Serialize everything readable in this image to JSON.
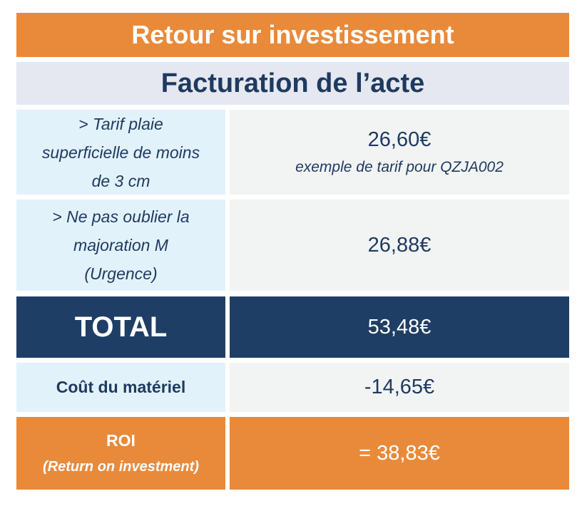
{
  "header": {
    "title": "Retour sur investissement",
    "subtitle": "Facturation de l’acte"
  },
  "table": {
    "rows": [
      {
        "label_lines": [
          "> Tarif plaie",
          "superficielle de moins",
          "de 3 cm"
        ],
        "value": "26,60€",
        "note": "exemple de tarif pour QZJA002"
      },
      {
        "label_lines": [
          "> Ne pas oublier la",
          "majoration M",
          "(Urgence)"
        ],
        "value": "26,88€"
      },
      {
        "label": "TOTAL",
        "value": "53,48€"
      },
      {
        "label": "Coût du matériel",
        "value": "-14,65€"
      },
      {
        "label": "ROI",
        "sublabel": "(Return on investment)",
        "value": "= 38,83€"
      }
    ]
  }
}
